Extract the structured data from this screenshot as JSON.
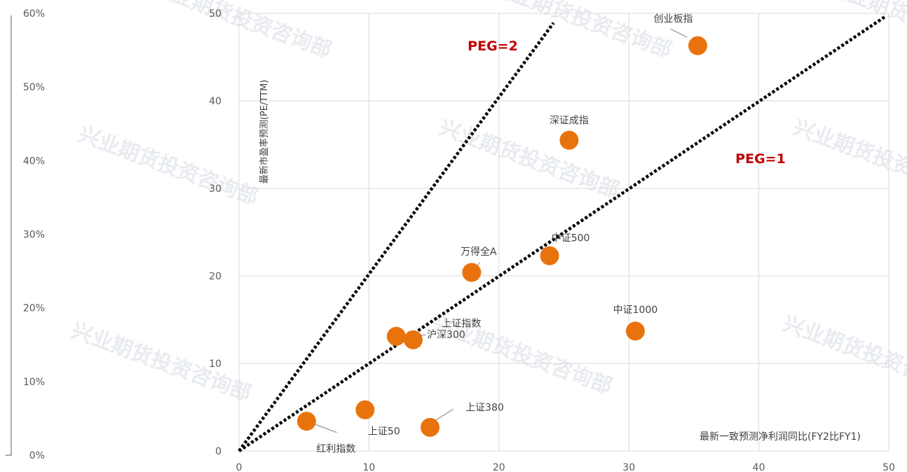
{
  "chart_data": {
    "type": "scatter",
    "xlabel": "最新一致预测净利润同比(FY2比FY1)",
    "ylabel": "最新市盈率预测(PE/TTM)",
    "xlim": [
      0,
      50
    ],
    "ylim": [
      0,
      50
    ],
    "x_ticks": [
      "0",
      "10",
      "20",
      "30",
      "40",
      "50"
    ],
    "y_ticks": [
      "0",
      "10",
      "20",
      "30",
      "40",
      "50"
    ],
    "secondary_axis_ticks": [
      "0%",
      "10%",
      "20%",
      "30%",
      "40%",
      "50%",
      "60%"
    ],
    "grid": true,
    "marker_color": "#e8730c",
    "points": [
      {
        "name": "创业板指",
        "x": 35.3,
        "y": 46.3
      },
      {
        "name": "深证成指",
        "x": 25.4,
        "y": 35.5
      },
      {
        "name": "中证500",
        "x": 23.9,
        "y": 22.3
      },
      {
        "name": "万得全A",
        "x": 17.9,
        "y": 20.4
      },
      {
        "name": "中证1000",
        "x": 30.5,
        "y": 13.7
      },
      {
        "name": "上证指数",
        "x": 12.1,
        "y": 13.1
      },
      {
        "name": "沪深300",
        "x": 13.4,
        "y": 12.7
      },
      {
        "name": "上证50",
        "x": 9.7,
        "y": 4.7
      },
      {
        "name": "上证380",
        "x": 14.7,
        "y": 2.7
      },
      {
        "name": "红利指数",
        "x": 5.2,
        "y": 3.4
      }
    ],
    "reference_lines": [
      {
        "name": "PEG=2",
        "x": [
          0,
          24.2
        ],
        "y": [
          0,
          48.9
        ]
      },
      {
        "name": "PEG=1",
        "x": [
          0,
          49.8
        ],
        "y": [
          0,
          49.7
        ]
      }
    ],
    "watermark": "兴业期货投资咨询部"
  }
}
